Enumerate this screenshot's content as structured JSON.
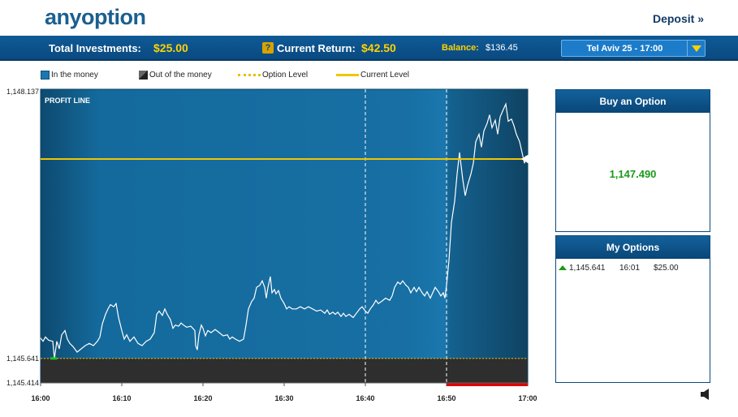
{
  "header": {
    "logo_any": "any",
    "logo_option": "option",
    "deposit_label": "Deposit »"
  },
  "topbar": {
    "total_investments_label": "Total Investments:",
    "total_investments_value": "$25.00",
    "help_icon": "?",
    "current_return_label": "Current Return:",
    "current_return_value": "$42.50",
    "balance_label": "Balance:",
    "balance_value": "$136.45",
    "asset_selected": "Tel Aviv 25 - 17:00"
  },
  "legend": {
    "in_the_money": "In the money",
    "out_of_the_money": "Out of the money",
    "option_level": "Option Level",
    "current_level": "Current Level"
  },
  "chart_data": {
    "type": "line",
    "title": "PROFIT LINE",
    "y_top_label": "1,148.137",
    "y_option_label": "1,145.641",
    "y_bottom_label": "1,145.414",
    "ylim": [
      1145.414,
      1148.137
    ],
    "option_level": 1145.641,
    "current_level": 1147.49,
    "x_ticks": [
      "16:00",
      "16:10",
      "16:20",
      "16:30",
      "16:40",
      "16:50",
      "17:00"
    ],
    "x_minutes": [
      0,
      10,
      20,
      30,
      40,
      50,
      60
    ],
    "markers_minutes": [
      40,
      50
    ],
    "colors": {
      "in_money": "#1a78b0",
      "out_money": "#2e2e2e",
      "line": "#ffffff",
      "option_level": "#e8c000",
      "current_level": "#f1c500",
      "expiry_bar": "#e00000"
    },
    "series": [
      {
        "values": [
          [
            0,
            1145.83
          ],
          [
            0.3,
            1145.8
          ],
          [
            0.6,
            1145.84
          ],
          [
            1,
            1145.81
          ],
          [
            1.5,
            1145.8
          ],
          [
            1.7,
            1145.64
          ],
          [
            2,
            1145.8
          ],
          [
            2.3,
            1145.73
          ],
          [
            2.6,
            1145.86
          ],
          [
            3,
            1145.9
          ],
          [
            3.3,
            1145.82
          ],
          [
            3.6,
            1145.78
          ],
          [
            4,
            1145.75
          ],
          [
            4.5,
            1145.7
          ],
          [
            5,
            1145.73
          ],
          [
            5.5,
            1145.76
          ],
          [
            6,
            1145.78
          ],
          [
            6.5,
            1145.76
          ],
          [
            7,
            1145.8
          ],
          [
            7.3,
            1145.84
          ],
          [
            7.6,
            1145.96
          ],
          [
            8,
            1146.05
          ],
          [
            8.3,
            1146.1
          ],
          [
            8.6,
            1146.14
          ],
          [
            9,
            1146.12
          ],
          [
            9.3,
            1146.15
          ],
          [
            9.6,
            1146.02
          ],
          [
            10,
            1145.9
          ],
          [
            10.3,
            1145.82
          ],
          [
            10.6,
            1145.86
          ],
          [
            11,
            1145.8
          ],
          [
            11.5,
            1145.84
          ],
          [
            12,
            1145.78
          ],
          [
            12.5,
            1145.76
          ],
          [
            13,
            1145.8
          ],
          [
            13.5,
            1145.82
          ],
          [
            14,
            1145.88
          ],
          [
            14.3,
            1146.05
          ],
          [
            14.6,
            1146.08
          ],
          [
            15,
            1146.04
          ],
          [
            15.3,
            1146.1
          ],
          [
            15.6,
            1146.05
          ],
          [
            16,
            1146.0
          ],
          [
            16.3,
            1145.92
          ],
          [
            16.6,
            1145.95
          ],
          [
            17,
            1145.94
          ],
          [
            17.3,
            1145.97
          ],
          [
            17.6,
            1145.95
          ],
          [
            18,
            1145.93
          ],
          [
            18.5,
            1145.94
          ],
          [
            19,
            1145.9
          ],
          [
            19.1,
            1145.76
          ],
          [
            19.3,
            1145.72
          ],
          [
            19.5,
            1145.86
          ],
          [
            19.8,
            1145.95
          ],
          [
            20,
            1145.92
          ],
          [
            20.3,
            1145.85
          ],
          [
            20.6,
            1145.9
          ],
          [
            21,
            1145.88
          ],
          [
            21.5,
            1145.91
          ],
          [
            22,
            1145.88
          ],
          [
            22.5,
            1145.85
          ],
          [
            23,
            1145.86
          ],
          [
            23.3,
            1145.82
          ],
          [
            23.6,
            1145.84
          ],
          [
            24,
            1145.82
          ],
          [
            24.5,
            1145.8
          ],
          [
            25,
            1145.82
          ],
          [
            25.3,
            1145.95
          ],
          [
            25.6,
            1146.1
          ],
          [
            26,
            1146.17
          ],
          [
            26.3,
            1146.2
          ],
          [
            26.6,
            1146.3
          ],
          [
            27,
            1146.32
          ],
          [
            27.3,
            1146.36
          ],
          [
            27.6,
            1146.3
          ],
          [
            27.8,
            1146.2
          ],
          [
            28,
            1146.3
          ],
          [
            28.3,
            1146.4
          ],
          [
            28.5,
            1146.25
          ],
          [
            28.8,
            1146.28
          ],
          [
            29,
            1146.24
          ],
          [
            29.3,
            1146.27
          ],
          [
            29.6,
            1146.2
          ],
          [
            30,
            1146.15
          ],
          [
            30.3,
            1146.1
          ],
          [
            30.6,
            1146.12
          ],
          [
            31,
            1146.1
          ],
          [
            31.5,
            1146.1
          ],
          [
            32,
            1146.12
          ],
          [
            32.5,
            1146.1
          ],
          [
            33,
            1146.12
          ],
          [
            33.5,
            1146.1
          ],
          [
            34,
            1146.08
          ],
          [
            34.5,
            1146.09
          ],
          [
            35,
            1146.06
          ],
          [
            35.3,
            1146.09
          ],
          [
            35.6,
            1146.05
          ],
          [
            36,
            1146.07
          ],
          [
            36.3,
            1146.05
          ],
          [
            36.6,
            1146.07
          ],
          [
            37,
            1146.03
          ],
          [
            37.3,
            1146.06
          ],
          [
            37.6,
            1146.03
          ],
          [
            38,
            1146.05
          ],
          [
            38.5,
            1146.02
          ],
          [
            39,
            1146.07
          ],
          [
            39.3,
            1146.1
          ],
          [
            39.6,
            1146.12
          ],
          [
            40,
            1146.08
          ],
          [
            40.3,
            1146.06
          ],
          [
            40.6,
            1146.1
          ],
          [
            41,
            1146.14
          ],
          [
            41.3,
            1146.18
          ],
          [
            41.6,
            1146.15
          ],
          [
            42,
            1146.17
          ],
          [
            42.5,
            1146.2
          ],
          [
            43,
            1146.18
          ],
          [
            43.3,
            1146.22
          ],
          [
            43.6,
            1146.3
          ],
          [
            44,
            1146.35
          ],
          [
            44.3,
            1146.33
          ],
          [
            44.6,
            1146.36
          ],
          [
            45,
            1146.32
          ],
          [
            45.3,
            1146.3
          ],
          [
            45.6,
            1146.25
          ],
          [
            46,
            1146.3
          ],
          [
            46.3,
            1146.26
          ],
          [
            46.6,
            1146.3
          ],
          [
            47,
            1146.25
          ],
          [
            47.3,
            1146.22
          ],
          [
            47.6,
            1146.26
          ],
          [
            48,
            1146.2
          ],
          [
            48.3,
            1146.25
          ],
          [
            48.6,
            1146.3
          ],
          [
            49,
            1146.26
          ],
          [
            49.3,
            1146.22
          ],
          [
            49.6,
            1146.25
          ],
          [
            49.8,
            1146.2
          ],
          [
            50,
            1146.32
          ],
          [
            50.3,
            1146.55
          ],
          [
            50.6,
            1146.9
          ],
          [
            51,
            1147.1
          ],
          [
            51.3,
            1147.35
          ],
          [
            51.6,
            1147.55
          ],
          [
            52,
            1147.3
          ],
          [
            52.3,
            1147.15
          ],
          [
            52.6,
            1147.25
          ],
          [
            53,
            1147.35
          ],
          [
            53.3,
            1147.45
          ],
          [
            53.6,
            1147.65
          ],
          [
            54,
            1147.72
          ],
          [
            54.3,
            1147.6
          ],
          [
            54.6,
            1147.75
          ],
          [
            55,
            1147.82
          ],
          [
            55.3,
            1147.9
          ],
          [
            55.6,
            1147.78
          ],
          [
            56,
            1147.85
          ],
          [
            56.3,
            1147.72
          ],
          [
            56.6,
            1147.88
          ],
          [
            57,
            1147.95
          ],
          [
            57.3,
            1148.0
          ],
          [
            57.6,
            1147.84
          ],
          [
            58,
            1147.86
          ],
          [
            58.3,
            1147.8
          ],
          [
            58.6,
            1147.72
          ],
          [
            59,
            1147.65
          ],
          [
            59.3,
            1147.55
          ],
          [
            59.6,
            1147.45
          ],
          [
            59.8,
            1147.52
          ]
        ]
      }
    ]
  },
  "buy_panel": {
    "title": "Buy an Option",
    "price": "1,147.490"
  },
  "my_options": {
    "title": "My Options",
    "rows": [
      {
        "level": "1,145.641",
        "time": "16:01",
        "amount": "$25.00"
      }
    ]
  }
}
